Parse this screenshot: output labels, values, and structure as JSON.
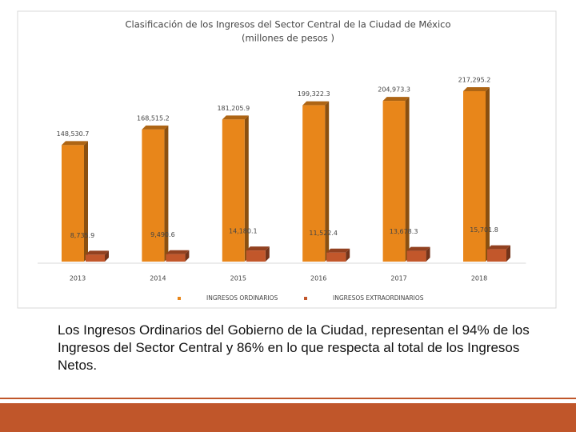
{
  "chart_data": {
    "type": "bar3d",
    "title": "Clasificación de los Ingresos del Sector Central de la Ciudad de México",
    "subtitle": "(millones de pesos )",
    "categories": [
      "2013",
      "2014",
      "2015",
      "2016",
      "2017",
      "2018"
    ],
    "series": [
      {
        "name": "INGRESOS ORDINARIOS",
        "color": "#e8861a",
        "values": [
          148530.7,
          168515.2,
          181205.9,
          199322.3,
          204973.3,
          217295.2
        ],
        "value_labels": [
          "148,530.7",
          "168,515.2",
          "181,205.9",
          "199,322.3",
          "204,973.3",
          "217,295.2"
        ]
      },
      {
        "name": "INGRESOS EXTRAORDINARIOS",
        "color": "#c2572b",
        "values": [
          8735.9,
          9490.6,
          14180.1,
          11522.4,
          13678.3,
          15701.8
        ],
        "value_labels": [
          "8,735.9",
          "9,490.6",
          "14,180.1",
          "11,522.4",
          "13,678.3",
          "15,701.8"
        ]
      }
    ],
    "legend": "bottom"
  },
  "body_text": "Los Ingresos Ordinarios  del Gobierno de la Ciudad, representan el 94% de los Ingresos del Sector Central y 86% en lo que respecta al total de los Ingresos Netos."
}
